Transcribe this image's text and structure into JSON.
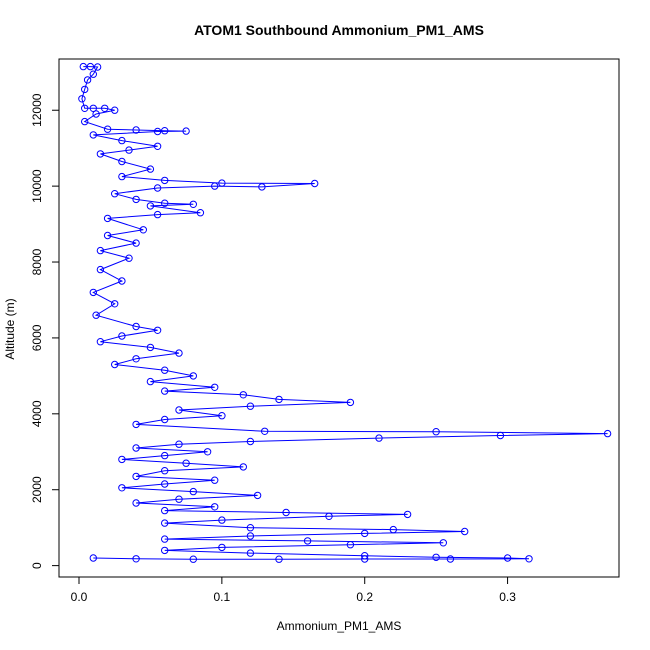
{
  "chart_data": {
    "type": "scatter",
    "title": "ATOM1 Southbound Ammonium_PM1_AMS",
    "xlabel": "Ammonium_PM1_AMS",
    "ylabel": "Altitude (m)",
    "xlim": [
      -0.014,
      0.378
    ],
    "ylim": [
      -300,
      13350
    ],
    "x_ticks": [
      {
        "value": 0.0,
        "label": "0.0"
      },
      {
        "value": 0.1,
        "label": "0.1"
      },
      {
        "value": 0.2,
        "label": "0.2"
      },
      {
        "value": 0.3,
        "label": "0.3"
      }
    ],
    "y_ticks": [
      {
        "value": 0,
        "label": "0"
      },
      {
        "value": 2000,
        "label": "2000"
      },
      {
        "value": 4000,
        "label": "4000"
      },
      {
        "value": 6000,
        "label": "6000"
      },
      {
        "value": 8000,
        "label": "8000"
      },
      {
        "value": 10000,
        "label": "10000"
      },
      {
        "value": 12000,
        "label": "12000"
      }
    ],
    "series_color": "#0000ff",
    "point_style": "open-circle-connected-line",
    "grid": false,
    "series": [
      {
        "values": [
          [
            0.003,
            13150
          ],
          [
            0.008,
            13150
          ],
          [
            0.013,
            13140
          ],
          [
            0.01,
            12950
          ],
          [
            0.006,
            12800
          ],
          [
            0.004,
            12550
          ],
          [
            0.002,
            12300
          ],
          [
            0.004,
            12050
          ],
          [
            0.01,
            12050
          ],
          [
            0.018,
            12050
          ],
          [
            0.025,
            12000
          ],
          [
            0.012,
            11900
          ],
          [
            0.004,
            11700
          ],
          [
            0.02,
            11500
          ],
          [
            0.04,
            11480
          ],
          [
            0.06,
            11460
          ],
          [
            0.075,
            11450
          ],
          [
            0.055,
            11440
          ],
          [
            0.01,
            11350
          ],
          [
            0.03,
            11200
          ],
          [
            0.055,
            11050
          ],
          [
            0.035,
            10950
          ],
          [
            0.015,
            10850
          ],
          [
            0.03,
            10650
          ],
          [
            0.05,
            10450
          ],
          [
            0.03,
            10250
          ],
          [
            0.06,
            10150
          ],
          [
            0.1,
            10080
          ],
          [
            0.165,
            10070
          ],
          [
            0.128,
            9980
          ],
          [
            0.095,
            10000
          ],
          [
            0.055,
            9950
          ],
          [
            0.025,
            9800
          ],
          [
            0.04,
            9650
          ],
          [
            0.06,
            9550
          ],
          [
            0.08,
            9520
          ],
          [
            0.05,
            9480
          ],
          [
            0.085,
            9300
          ],
          [
            0.055,
            9250
          ],
          [
            0.02,
            9150
          ],
          [
            0.045,
            8850
          ],
          [
            0.02,
            8700
          ],
          [
            0.04,
            8500
          ],
          [
            0.015,
            8300
          ],
          [
            0.035,
            8100
          ],
          [
            0.015,
            7800
          ],
          [
            0.03,
            7500
          ],
          [
            0.01,
            7200
          ],
          [
            0.025,
            6900
          ],
          [
            0.012,
            6600
          ],
          [
            0.04,
            6300
          ],
          [
            0.055,
            6200
          ],
          [
            0.03,
            6050
          ],
          [
            0.015,
            5900
          ],
          [
            0.05,
            5750
          ],
          [
            0.07,
            5600
          ],
          [
            0.04,
            5450
          ],
          [
            0.025,
            5300
          ],
          [
            0.06,
            5150
          ],
          [
            0.08,
            5000
          ],
          [
            0.05,
            4850
          ],
          [
            0.095,
            4700
          ],
          [
            0.06,
            4600
          ],
          [
            0.115,
            4500
          ],
          [
            0.14,
            4380
          ],
          [
            0.19,
            4300
          ],
          [
            0.12,
            4200
          ],
          [
            0.07,
            4100
          ],
          [
            0.1,
            3950
          ],
          [
            0.06,
            3850
          ],
          [
            0.04,
            3720
          ],
          [
            0.13,
            3540
          ],
          [
            0.25,
            3530
          ],
          [
            0.37,
            3480
          ],
          [
            0.295,
            3430
          ],
          [
            0.21,
            3360
          ],
          [
            0.12,
            3270
          ],
          [
            0.07,
            3200
          ],
          [
            0.04,
            3100
          ],
          [
            0.09,
            3000
          ],
          [
            0.06,
            2900
          ],
          [
            0.03,
            2800
          ],
          [
            0.075,
            2700
          ],
          [
            0.115,
            2600
          ],
          [
            0.06,
            2500
          ],
          [
            0.04,
            2350
          ],
          [
            0.095,
            2250
          ],
          [
            0.06,
            2150
          ],
          [
            0.03,
            2050
          ],
          [
            0.08,
            1950
          ],
          [
            0.125,
            1850
          ],
          [
            0.07,
            1750
          ],
          [
            0.04,
            1650
          ],
          [
            0.095,
            1550
          ],
          [
            0.06,
            1450
          ],
          [
            0.145,
            1400
          ],
          [
            0.23,
            1350
          ],
          [
            0.175,
            1300
          ],
          [
            0.1,
            1200
          ],
          [
            0.06,
            1120
          ],
          [
            0.12,
            1000
          ],
          [
            0.22,
            950
          ],
          [
            0.27,
            900
          ],
          [
            0.2,
            850
          ],
          [
            0.12,
            780
          ],
          [
            0.06,
            700
          ],
          [
            0.16,
            650
          ],
          [
            0.255,
            600
          ],
          [
            0.19,
            550
          ],
          [
            0.1,
            480
          ],
          [
            0.06,
            400
          ],
          [
            0.12,
            330
          ],
          [
            0.2,
            260
          ],
          [
            0.25,
            220
          ],
          [
            0.3,
            200
          ],
          [
            0.315,
            180
          ],
          [
            0.26,
            175
          ],
          [
            0.2,
            175
          ],
          [
            0.14,
            170
          ],
          [
            0.08,
            170
          ],
          [
            0.04,
            180
          ],
          [
            0.01,
            200
          ]
        ]
      }
    ]
  }
}
